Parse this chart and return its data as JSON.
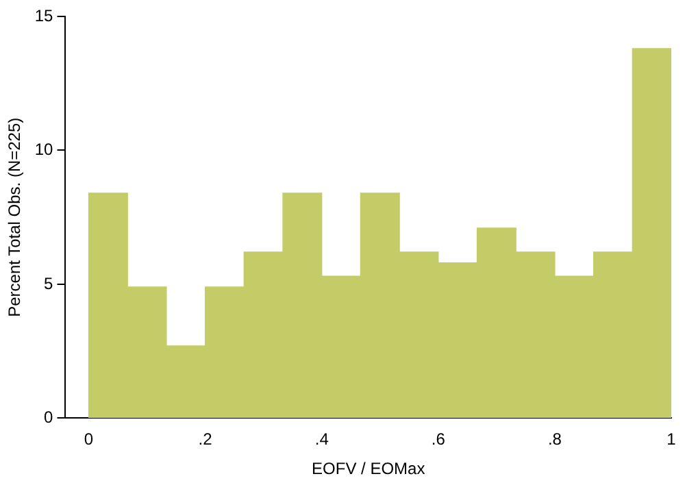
{
  "chart_data": {
    "type": "histogram",
    "xlabel": "EOFV / EOMax",
    "ylabel": "Percent Total Obs. (N=225)",
    "bins": [
      0,
      0.0667,
      0.1333,
      0.2,
      0.2667,
      0.3333,
      0.4,
      0.4667,
      0.5333,
      0.6,
      0.6667,
      0.7333,
      0.8,
      0.8667,
      0.9333,
      1
    ],
    "values": [
      8.4,
      4.9,
      2.7,
      4.9,
      6.2,
      8.4,
      5.3,
      8.4,
      6.2,
      5.8,
      7.1,
      6.2,
      5.3,
      6.2,
      13.8
    ],
    "color": "#c3cc66",
    "xlim": [
      -0.04,
      1
    ],
    "xticks": [
      0,
      {
        "value": 0.2,
        "label": ".2"
      },
      {
        "value": 0.4,
        "label": ".4"
      },
      {
        "value": 0.6,
        "label": ".6"
      },
      {
        "value": 0.8,
        "label": ".8"
      },
      1
    ],
    "ylim": [
      0,
      15
    ],
    "yticks": [
      0,
      5,
      10,
      15
    ],
    "grid": false,
    "legend": false
  }
}
